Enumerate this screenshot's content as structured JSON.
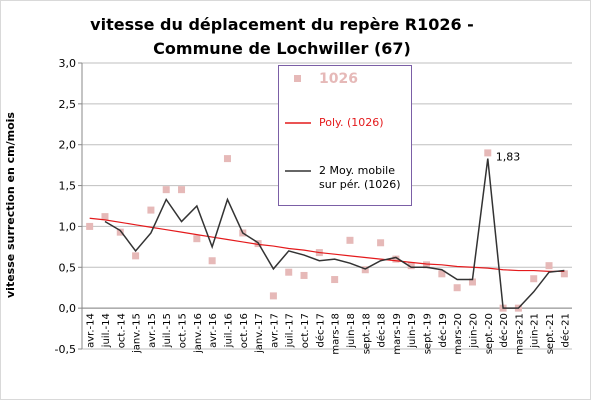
{
  "chart_data": {
    "type": "line",
    "title": [
      "vitesse du déplacement du  repère R1026 -",
      "Commune de Lochwiller (67)"
    ],
    "y_label": "vitesse surrection en cm/mois",
    "annotation": "1,83",
    "categories": [
      "avr.-14",
      "juil.-14",
      "oct.-14",
      "janv.-15",
      "avr.-15",
      "juil.-15",
      "oct.-15",
      "janv.-16",
      "avr.-16",
      "juil.-16",
      "oct.-16",
      "janv.-17",
      "avr.-17",
      "juil.-17",
      "oct.-17",
      "déc-17",
      "mars-18",
      "juin-18",
      "sept.-18",
      "déc-18",
      "mars-19",
      "juin-19",
      "sept.-19",
      "déc-19",
      "mars-20",
      "juin-20",
      "sept.-20",
      "déc-20",
      "mars-21",
      "juin-21",
      "sept.-21",
      "déc-21"
    ],
    "series": [
      {
        "name": "1026",
        "kind": "scatter",
        "color": "#e6b9b8",
        "values": [
          1.0,
          1.12,
          0.93,
          0.64,
          1.2,
          1.45,
          1.45,
          0.85,
          0.58,
          1.83,
          0.92,
          0.79,
          0.15,
          0.44,
          0.4,
          0.68,
          0.35,
          0.83,
          0.47,
          0.8,
          0.6,
          0.52,
          0.53,
          0.42,
          0.25,
          0.32,
          1.9,
          0.0,
          0.0,
          0.36,
          0.52,
          0.42
        ]
      },
      {
        "name": "Poly. (1026)",
        "kind": "line",
        "color": "#e41a1c",
        "values": [
          1.1,
          1.08,
          1.05,
          1.02,
          0.99,
          0.96,
          0.93,
          0.9,
          0.87,
          0.84,
          0.81,
          0.78,
          0.76,
          0.73,
          0.71,
          0.68,
          0.66,
          0.64,
          0.62,
          0.6,
          0.58,
          0.56,
          0.54,
          0.53,
          0.51,
          0.5,
          0.49,
          0.47,
          0.46,
          0.46,
          0.45,
          0.45
        ]
      },
      {
        "name": "2 Moy. mobile sur pér. (1026)",
        "kind": "line",
        "color": "#333333",
        "values": [
          null,
          1.06,
          0.95,
          0.7,
          0.92,
          1.33,
          1.06,
          1.25,
          0.75,
          1.33,
          0.92,
          0.8,
          0.48,
          0.7,
          0.65,
          0.58,
          0.6,
          0.55,
          0.48,
          0.58,
          0.62,
          0.5,
          0.5,
          0.47,
          0.35,
          0.35,
          1.83,
          0.0,
          0.0,
          0.2,
          0.44,
          0.46
        ]
      }
    ],
    "ylim": [
      -0.5,
      3.0
    ],
    "yticks": [
      {
        "value": -0.5,
        "label": "-0,5"
      },
      {
        "value": 0,
        "label": "0,0"
      },
      {
        "value": 0.5,
        "label": "0,5"
      },
      {
        "value": 1,
        "label": "1,0"
      },
      {
        "value": 1.5,
        "label": "1,5"
      },
      {
        "value": 2,
        "label": "2,0"
      },
      {
        "value": 2.5,
        "label": "2,5"
      },
      {
        "value": 3,
        "label": "3,0"
      }
    ],
    "grid": true
  }
}
